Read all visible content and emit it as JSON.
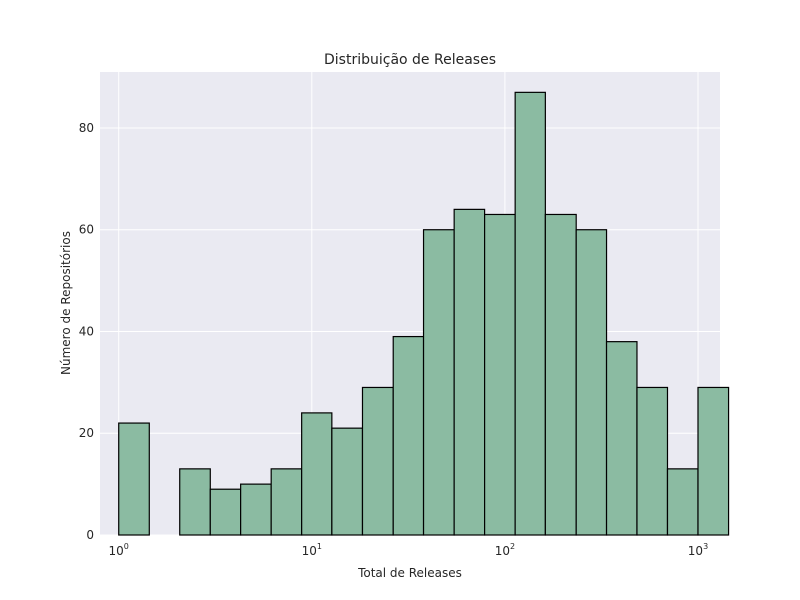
{
  "chart_data": {
    "type": "bar",
    "title": "Distribuição de Releases",
    "xlabel": "Total de Releases",
    "ylabel": "Número de Repositórios",
    "x_scale": "log",
    "xlim": [
      0.8,
      1300
    ],
    "ylim": [
      0,
      91
    ],
    "x_ticks": [
      {
        "value": 1,
        "base": "10",
        "exp": "0"
      },
      {
        "value": 10,
        "base": "10",
        "exp": "1"
      },
      {
        "value": 100,
        "base": "10",
        "exp": "2"
      },
      {
        "value": 1000,
        "base": "10",
        "exp": "3"
      }
    ],
    "y_ticks": [
      0,
      20,
      40,
      60,
      80
    ],
    "grid": true,
    "bar_color": "#8bbba2",
    "edge_color": "#000000",
    "bins": [
      {
        "x0": 1.0,
        "x1": 1.44,
        "count": 22
      },
      {
        "x0": 1.44,
        "x1": 2.07,
        "count": 0
      },
      {
        "x0": 2.07,
        "x1": 2.98,
        "count": 13
      },
      {
        "x0": 2.98,
        "x1": 4.28,
        "count": 9
      },
      {
        "x0": 4.28,
        "x1": 6.16,
        "count": 10
      },
      {
        "x0": 6.16,
        "x1": 8.86,
        "count": 13
      },
      {
        "x0": 8.86,
        "x1": 12.7,
        "count": 24
      },
      {
        "x0": 12.7,
        "x1": 18.3,
        "count": 21
      },
      {
        "x0": 18.3,
        "x1": 26.4,
        "count": 29
      },
      {
        "x0": 26.4,
        "x1": 37.9,
        "count": 39
      },
      {
        "x0": 37.9,
        "x1": 54.6,
        "count": 60
      },
      {
        "x0": 54.6,
        "x1": 78.5,
        "count": 64
      },
      {
        "x0": 78.5,
        "x1": 113,
        "count": 63
      },
      {
        "x0": 113,
        "x1": 162,
        "count": 87
      },
      {
        "x0": 162,
        "x1": 234,
        "count": 63
      },
      {
        "x0": 234,
        "x1": 336,
        "count": 60
      },
      {
        "x0": 336,
        "x1": 483,
        "count": 38
      },
      {
        "x0": 483,
        "x1": 695,
        "count": 29
      },
      {
        "x0": 695,
        "x1": 1000,
        "count": 13
      },
      {
        "x0": 1000,
        "x1": 1440,
        "count": 29
      }
    ]
  },
  "colors": {
    "plot_background": "#eaeaf2",
    "grid": "#ffffff",
    "text": "#262626"
  }
}
